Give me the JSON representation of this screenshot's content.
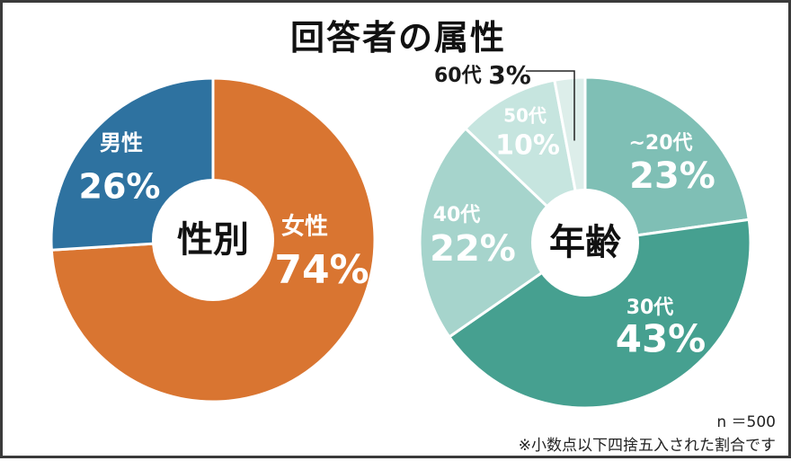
{
  "title": "回答者の属性",
  "chart_data": [
    {
      "type": "pie",
      "center_label": "性別",
      "slices": [
        {
          "label": "女性",
          "value": 74,
          "display": "74%",
          "color": "#D97531",
          "text_color": "#ffffff"
        },
        {
          "label": "男性",
          "value": 26,
          "display": "26%",
          "color": "#2E72A0",
          "text_color": "#ffffff"
        }
      ]
    },
    {
      "type": "pie",
      "center_label": "年齢",
      "slices": [
        {
          "label": "~20代",
          "value": 23,
          "display": "23%",
          "color": "#7FBFB5",
          "text_color": "#ffffff"
        },
        {
          "label": "30代",
          "value": 43,
          "display": "43%",
          "color": "#46A090",
          "text_color": "#ffffff"
        },
        {
          "label": "40代",
          "value": 22,
          "display": "22%",
          "color": "#A6D4CC",
          "text_color": "#ffffff"
        },
        {
          "label": "50代",
          "value": 10,
          "display": "10%",
          "color": "#C6E5DF",
          "text_color": "#ffffff"
        },
        {
          "label": "60代",
          "value": 3,
          "display": "3%",
          "color": "#DDEEEA",
          "text_color": "#1a1a1a"
        }
      ]
    }
  ],
  "notes": {
    "sample": "n ＝500",
    "rounding": "※小数点以下四捨五入された割合です"
  }
}
